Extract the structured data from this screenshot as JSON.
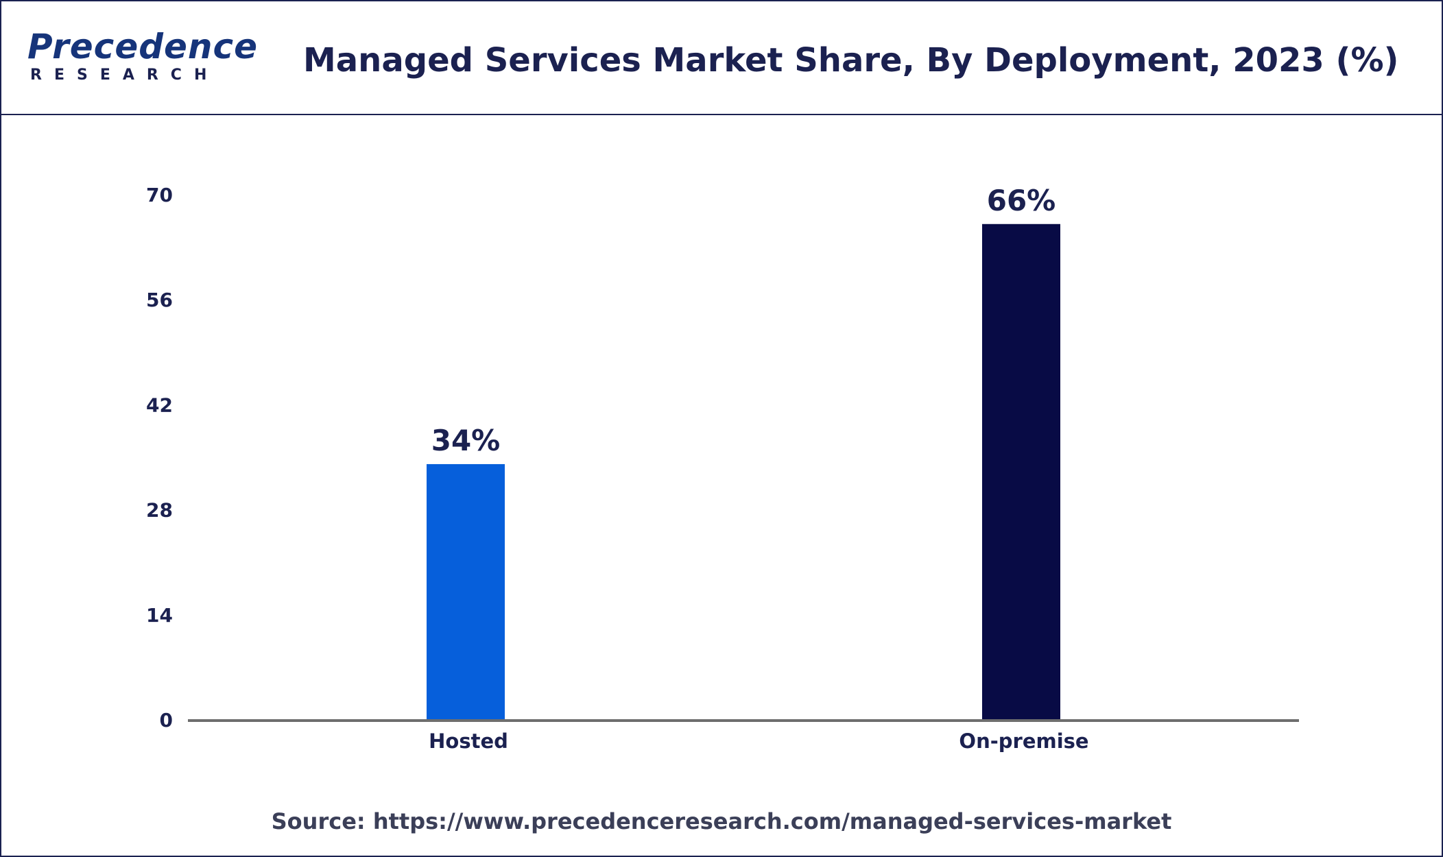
{
  "header": {
    "logo_text": "Precedence",
    "logo_subtext": "RESEARCH",
    "title": "Managed Services Market Share, By Deployment, 2023 (%)"
  },
  "footer": {
    "source_prefix": "Source: ",
    "source_url": "https://www.precedenceresearch.com/managed-services-market"
  },
  "colors": {
    "hosted": "#065fdb",
    "on_premise": "#080b45",
    "text": "#1b2150",
    "axis": "#6e6e6e"
  },
  "chart_data": {
    "type": "bar",
    "title": "Managed Services Market Share, By Deployment, 2023 (%)",
    "xlabel": "",
    "ylabel": "",
    "categories": [
      "Hosted",
      "On-premise"
    ],
    "values": [
      34,
      66
    ],
    "data_labels": [
      "34%",
      "66%"
    ],
    "bar_colors": [
      "#065fdb",
      "#080b45"
    ],
    "ylim": [
      0,
      70
    ],
    "yticks": [
      0,
      14,
      28,
      42,
      56,
      70
    ],
    "grid": false,
    "legend": "none"
  }
}
